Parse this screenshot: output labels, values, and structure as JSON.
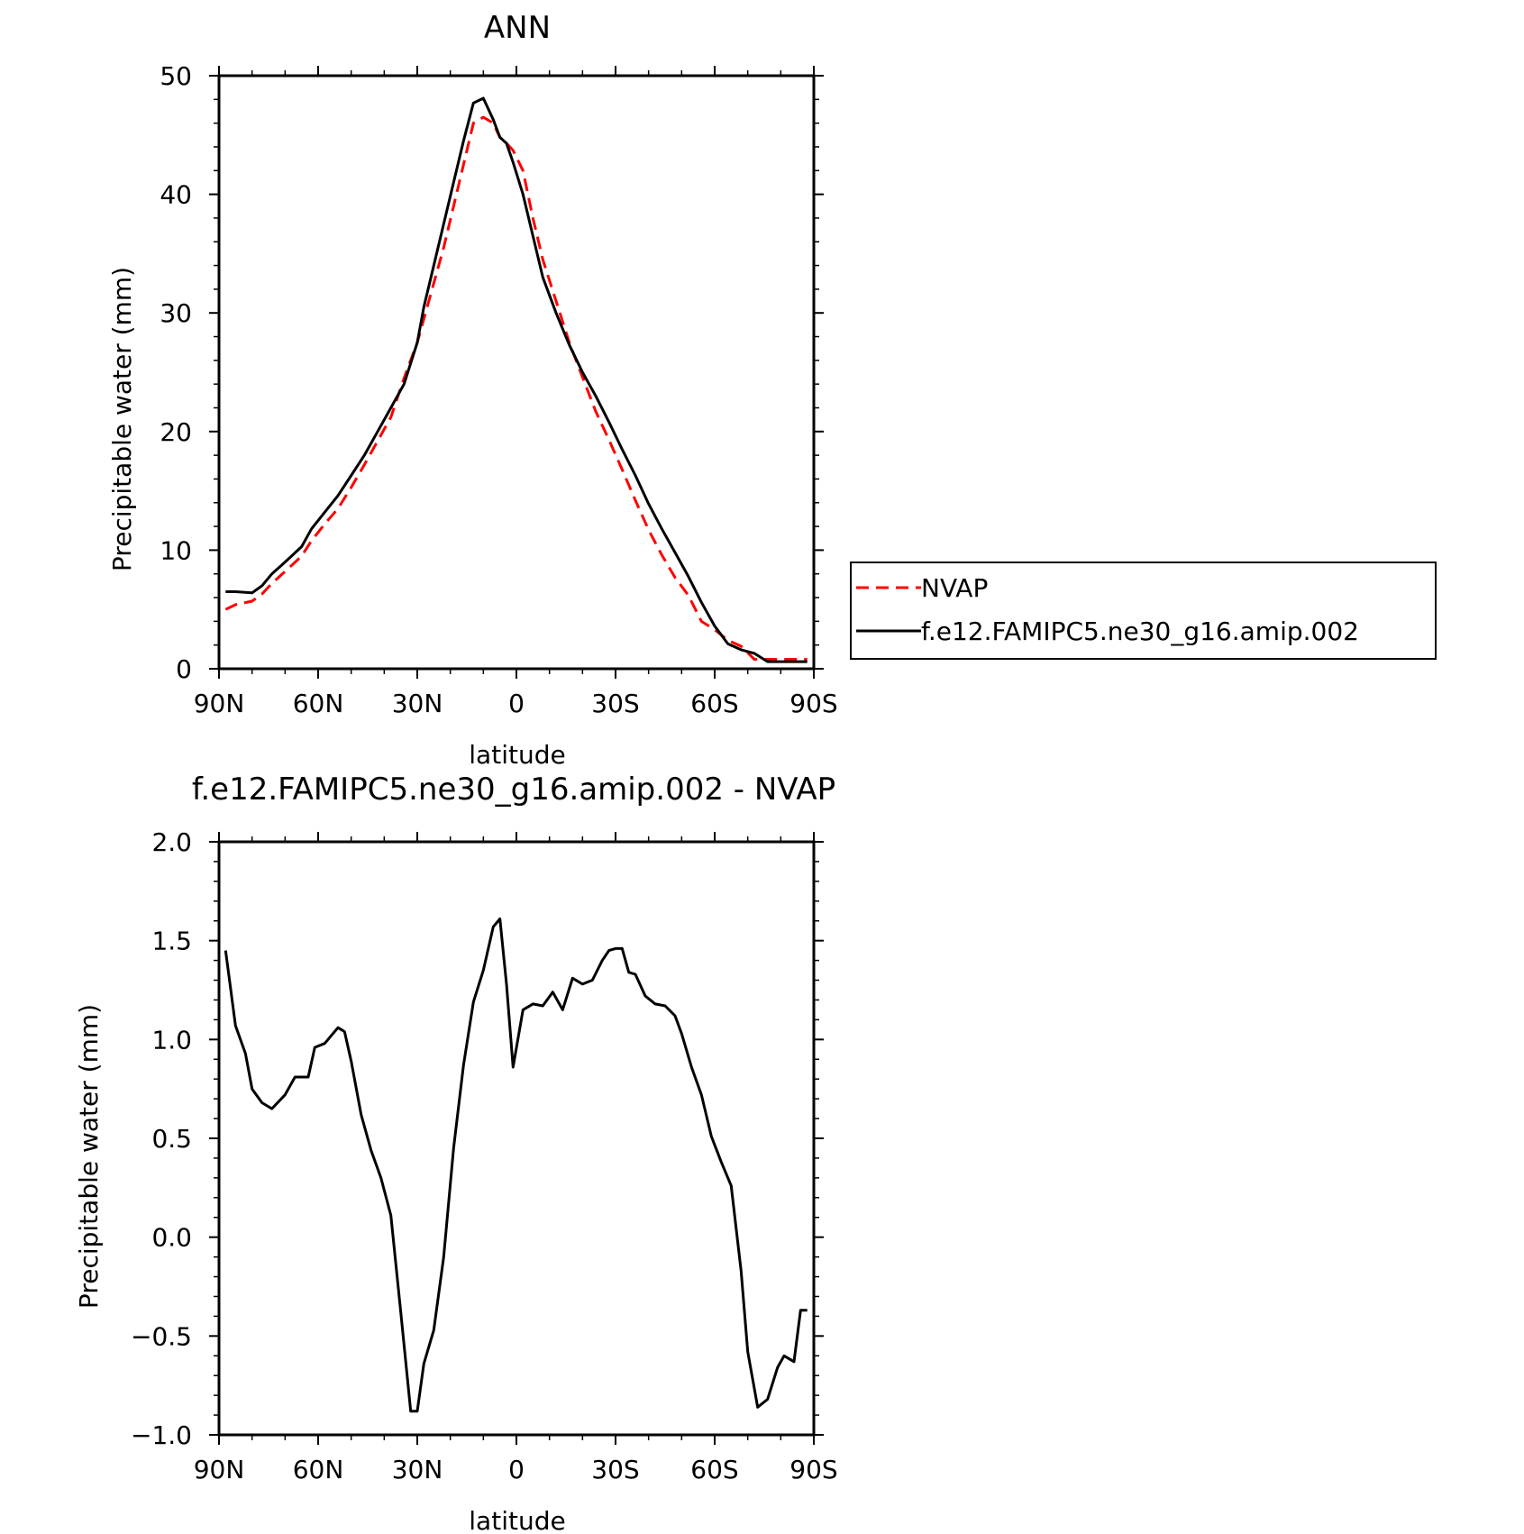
{
  "chart_data": [
    {
      "type": "line",
      "title": "ANN",
      "xlabel": "latitude",
      "ylabel": "Precipitable water (mm)",
      "xlim": [
        90,
        -90
      ],
      "ylim": [
        0,
        50
      ],
      "xticks": [
        {
          "value": 90,
          "label": "90N"
        },
        {
          "value": 60,
          "label": "60N"
        },
        {
          "value": 30,
          "label": "30N"
        },
        {
          "value": 0,
          "label": "0"
        },
        {
          "value": -30,
          "label": "30S"
        },
        {
          "value": -60,
          "label": "60S"
        },
        {
          "value": -90,
          "label": "90S"
        }
      ],
      "yticks": [
        {
          "value": 0,
          "label": "0"
        },
        {
          "value": 10,
          "label": "10"
        },
        {
          "value": 20,
          "label": "20"
        },
        {
          "value": 30,
          "label": "30"
        },
        {
          "value": 40,
          "label": "40"
        },
        {
          "value": 50,
          "label": "50"
        }
      ],
      "grid": false,
      "legend_position": "right",
      "series": [
        {
          "name": "NVAP",
          "color": "#ff0000",
          "dash": "dashed",
          "x": [
            88,
            85,
            80,
            77,
            74,
            70,
            65,
            62,
            58,
            54,
            50,
            46,
            42,
            38,
            34,
            30,
            28,
            25,
            22,
            19,
            16,
            13,
            10,
            7,
            5,
            3,
            1,
            -2,
            -5,
            -8,
            -12,
            -16,
            -20,
            -24,
            -28,
            -32,
            -36,
            -40,
            -44,
            -48,
            -52,
            -56,
            -60,
            -64,
            -68,
            -72,
            -76,
            -80,
            -84,
            -88
          ],
          "y": [
            5.0,
            5.4,
            5.7,
            6.3,
            7.2,
            8.2,
            9.5,
            10.8,
            12.2,
            13.5,
            15.3,
            17.2,
            19.2,
            21.2,
            24.5,
            27.5,
            29.5,
            32.5,
            35.5,
            39.0,
            42.5,
            46.0,
            46.5,
            46.0,
            44.8,
            44.3,
            43.7,
            42.0,
            38.0,
            34.5,
            31.0,
            27.5,
            24.6,
            21.7,
            19.3,
            16.8,
            14.2,
            11.7,
            9.6,
            7.7,
            6.2,
            4.0,
            3.3,
            2.4,
            1.9,
            0.8,
            0.8,
            0.8,
            0.8,
            0.8
          ]
        },
        {
          "name": "f.e12.FAMIPC5.ne30_g16.amip.002",
          "color": "#000000",
          "dash": "solid",
          "x": [
            88,
            85,
            80,
            77,
            74,
            70,
            65,
            62,
            58,
            54,
            50,
            46,
            42,
            38,
            34,
            30,
            28,
            25,
            22,
            19,
            16,
            13,
            10,
            7,
            5,
            3,
            1,
            -2,
            -5,
            -8,
            -12,
            -16,
            -20,
            -24,
            -28,
            -32,
            -36,
            -40,
            -44,
            -48,
            -52,
            -56,
            -60,
            -64,
            -68,
            -72,
            -76,
            -80,
            -84,
            -88
          ],
          "y": [
            6.5,
            6.5,
            6.4,
            7.0,
            8.0,
            9.0,
            10.3,
            11.8,
            13.2,
            14.6,
            16.3,
            18.0,
            20.0,
            22.0,
            24.0,
            27.5,
            30.5,
            34.0,
            37.5,
            41.0,
            44.5,
            47.7,
            48.1,
            46.3,
            44.8,
            44.3,
            42.7,
            40.0,
            36.5,
            33.0,
            30.0,
            27.3,
            25.0,
            23.0,
            20.8,
            18.5,
            16.3,
            13.9,
            11.8,
            9.8,
            7.8,
            5.6,
            3.6,
            2.1,
            1.6,
            1.3,
            0.6,
            0.6,
            0.6,
            0.6
          ]
        }
      ]
    },
    {
      "type": "line",
      "title": "f.e12.FAMIPC5.ne30_g16.amip.002 - NVAP",
      "xlabel": "latitude",
      "ylabel": "Precipitable water (mm)",
      "xlim": [
        90,
        -90
      ],
      "ylim": [
        -1.0,
        2.0
      ],
      "xticks": [
        {
          "value": 90,
          "label": "90N"
        },
        {
          "value": 60,
          "label": "60N"
        },
        {
          "value": 30,
          "label": "30N"
        },
        {
          "value": 0,
          "label": "0"
        },
        {
          "value": -30,
          "label": "30S"
        },
        {
          "value": -60,
          "label": "60S"
        },
        {
          "value": -90,
          "label": "90S"
        }
      ],
      "yticks": [
        {
          "value": -1.0,
          "label": "−1.0"
        },
        {
          "value": -0.5,
          "label": "−0.5"
        },
        {
          "value": 0.0,
          "label": "0.0"
        },
        {
          "value": 0.5,
          "label": "0.5"
        },
        {
          "value": 1.0,
          "label": "1.0"
        },
        {
          "value": 1.5,
          "label": "1.5"
        },
        {
          "value": 2.0,
          "label": "2.0"
        }
      ],
      "grid": false,
      "series": [
        {
          "color": "#000000",
          "dash": "solid",
          "x": [
            88,
            85,
            82,
            80,
            77,
            74,
            70,
            67,
            63,
            61,
            58,
            54,
            52,
            50,
            47,
            44,
            41,
            38,
            35,
            32,
            30,
            28,
            25,
            22,
            19,
            16,
            13,
            10,
            7,
            5,
            3,
            1,
            -2,
            -5,
            -8,
            -11,
            -14,
            -17,
            -20,
            -23,
            -26,
            -28,
            -30,
            -32,
            -34,
            -36,
            -39,
            -42,
            -45,
            -48,
            -50,
            -53,
            -56,
            -59,
            -62,
            -65,
            -68,
            -70,
            -73,
            -76,
            -79,
            -81,
            -84,
            -86,
            -88
          ],
          "y": [
            1.45,
            1.07,
            0.93,
            0.75,
            0.68,
            0.65,
            0.72,
            0.81,
            0.81,
            0.96,
            0.98,
            1.06,
            1.04,
            0.89,
            0.62,
            0.44,
            0.3,
            0.11,
            -0.38,
            -0.88,
            -0.88,
            -0.64,
            -0.47,
            -0.1,
            0.45,
            0.87,
            1.19,
            1.35,
            1.57,
            1.61,
            1.28,
            0.86,
            1.15,
            1.18,
            1.17,
            1.24,
            1.15,
            1.31,
            1.28,
            1.3,
            1.4,
            1.45,
            1.46,
            1.46,
            1.34,
            1.33,
            1.22,
            1.18,
            1.17,
            1.12,
            1.03,
            0.86,
            0.72,
            0.51,
            0.38,
            0.26,
            -0.17,
            -0.58,
            -0.86,
            -0.82,
            -0.66,
            -0.6,
            -0.63,
            -0.37,
            -0.37
          ]
        }
      ]
    }
  ]
}
